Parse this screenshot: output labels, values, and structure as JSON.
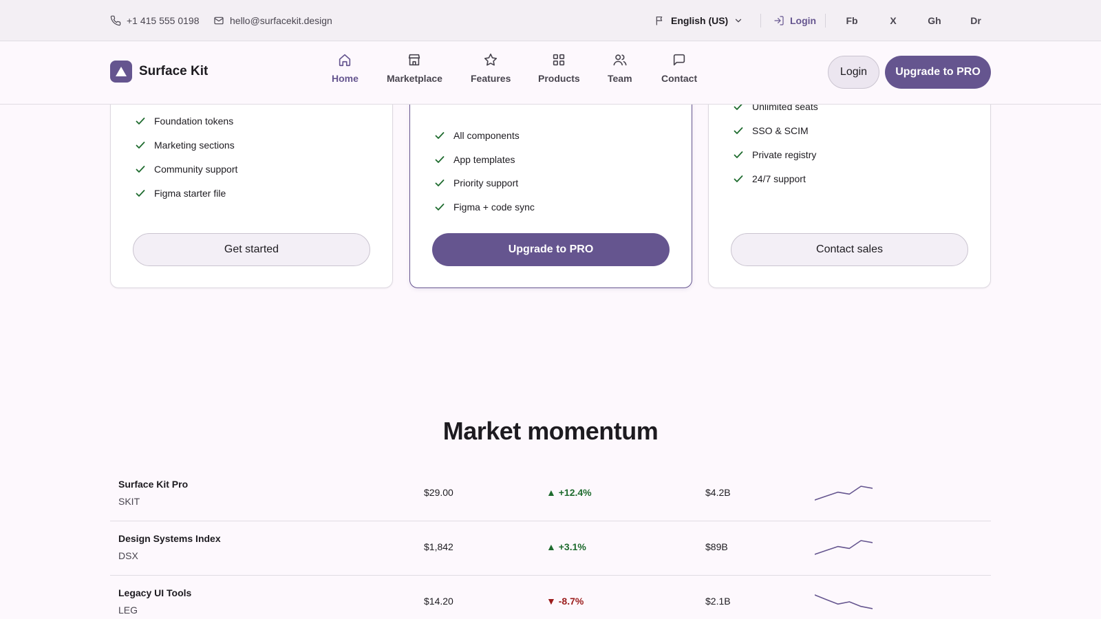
{
  "topbar": {
    "phone": "+1 415 555 0198",
    "email": "hello@surfacekit.design",
    "language": "English (US)",
    "login": "Login",
    "social": [
      "Fb",
      "X",
      "Gh",
      "Dr"
    ]
  },
  "nav": {
    "brand": "Surface Kit",
    "tabs": [
      {
        "label": "Home",
        "icon": "home-icon",
        "active": true
      },
      {
        "label": "Marketplace",
        "icon": "store-icon",
        "active": false
      },
      {
        "label": "Features",
        "icon": "star-icon",
        "active": false
      },
      {
        "label": "Products",
        "icon": "grid-icon",
        "active": false
      },
      {
        "label": "Team",
        "icon": "team-icon",
        "active": false
      },
      {
        "label": "Contact",
        "icon": "chat-icon",
        "active": false
      }
    ],
    "login_button": "Login",
    "upgrade_button": "Upgrade to PRO"
  },
  "pricing": {
    "cards": [
      {
        "features": [
          "Foundation tokens",
          "Marketing sections",
          "Community support",
          "Figma starter file"
        ],
        "cta": "Get started",
        "featured": false
      },
      {
        "features": [
          "All components",
          "App templates",
          "Priority support",
          "Figma + code sync"
        ],
        "cta": "Upgrade to PRO",
        "featured": true
      },
      {
        "features": [
          "Unlimited seats",
          "SSO & SCIM",
          "Private registry",
          "24/7 support"
        ],
        "cta": "Contact sales",
        "featured": false
      }
    ]
  },
  "market": {
    "title": "Market momentum",
    "rows": [
      {
        "name": "Surface Kit Pro",
        "ticker": "SKIT",
        "price": "$29.00",
        "change": "▲ +12.4%",
        "direction": "up",
        "cap": "$4.2B",
        "spark": [
          2,
          4,
          6,
          5,
          9,
          8
        ]
      },
      {
        "name": "Design Systems Index",
        "ticker": "DSX",
        "price": "$1,842",
        "change": "▲ +3.1%",
        "direction": "up",
        "cap": "$89B",
        "spark": [
          2,
          4,
          6,
          5,
          9,
          8
        ]
      },
      {
        "name": "Legacy UI Tools",
        "ticker": "LEG",
        "price": "$14.20",
        "change": "▼ -8.7%",
        "direction": "down",
        "cap": "$2.1B",
        "spark": [
          9,
          7,
          5,
          6,
          4,
          3
        ]
      }
    ]
  },
  "colors": {
    "primary": "#65558f",
    "up": "#1e6b2e",
    "down": "#9b1c1c",
    "check": "#1e6b2e",
    "background": "#fdf8fd"
  }
}
